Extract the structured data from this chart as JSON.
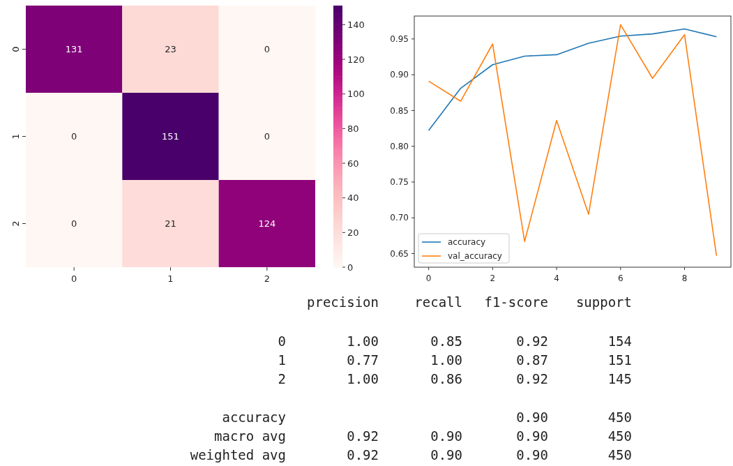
{
  "chart_data": [
    {
      "type": "heatmap",
      "categories": [
        "0",
        "1",
        "2"
      ],
      "y_categories": [
        "0",
        "1",
        "2"
      ],
      "cells": [
        [
          131,
          23,
          0
        ],
        [
          0,
          151,
          0
        ],
        [
          0,
          21,
          124
        ]
      ],
      "data_labels": true,
      "clim": [
        0,
        151
      ],
      "cticks": [
        0,
        20,
        40,
        60,
        80,
        100,
        120,
        140
      ]
    },
    {
      "type": "line",
      "x": [
        0,
        1,
        2,
        3,
        4,
        5,
        6,
        7,
        8,
        9
      ],
      "series": [
        {
          "name": "accuracy",
          "color": "#1f77b4",
          "values": [
            0.822,
            0.881,
            0.914,
            0.926,
            0.928,
            0.944,
            0.954,
            0.957,
            0.964,
            0.953
          ]
        },
        {
          "name": "val_accuracy",
          "color": "#ff7f0e",
          "values": [
            0.891,
            0.863,
            0.943,
            0.667,
            0.836,
            0.705,
            0.97,
            0.895,
            0.956,
            0.647
          ]
        }
      ],
      "xlim": [
        -0.45,
        9.45
      ],
      "ylim": [
        0.631,
        0.982
      ],
      "xticks": [
        0,
        2,
        4,
        6,
        8
      ],
      "yticks": [
        {
          "value": 0.65,
          "label": "0.65"
        },
        {
          "value": 0.7,
          "label": "0.70"
        },
        {
          "value": 0.75,
          "label": "0.75"
        },
        {
          "value": 0.8,
          "label": "0.80"
        },
        {
          "value": 0.85,
          "label": "0.85"
        },
        {
          "value": 0.9,
          "label": "0.90"
        },
        {
          "value": 0.95,
          "label": "0.95"
        }
      ],
      "legend": "bottom left",
      "grid": false
    },
    {
      "type": "other",
      "categories": [
        "precision",
        "recall",
        "f1-score",
        "support"
      ],
      "y_categories": [
        "0",
        "1",
        "2",
        "accuracy",
        "macro avg",
        "weighted avg"
      ],
      "cell_labels": [
        [
          "1.00",
          "0.85",
          "0.92",
          "154"
        ],
        [
          "0.77",
          "1.00",
          "0.87",
          "151"
        ],
        [
          "1.00",
          "0.86",
          "0.92",
          "145"
        ],
        [
          null,
          null,
          "0.90",
          "450"
        ],
        [
          "0.92",
          "0.90",
          "0.90",
          "450"
        ],
        [
          "0.92",
          "0.90",
          "0.90",
          "450"
        ]
      ]
    }
  ]
}
